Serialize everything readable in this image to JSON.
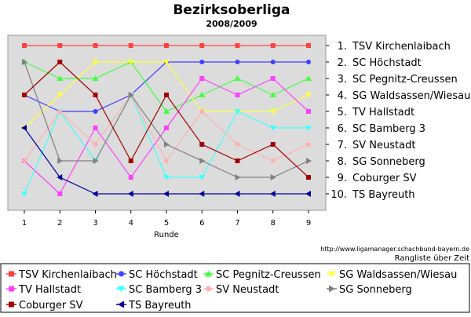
{
  "chart_data": {
    "type": "line",
    "title": "Bezirksoberliga",
    "subtitle": "2008/2009",
    "xlabel": "Runde",
    "x": [
      1,
      2,
      3,
      4,
      5,
      6,
      7,
      8,
      9
    ],
    "ylim": [
      1,
      10
    ],
    "y_inverted": true,
    "grid": false,
    "legend_position": "bottom",
    "rank_labels": [
      "1. TSV Kirchenlaibach",
      "2. SC Höchstadt",
      "3. SC Pegnitz-Creussen",
      "4. SG Waldsassen/Wiesau",
      "5. TV Hallstadt",
      "6. SC Bamberg 3",
      "7. SV Neustadt",
      "8. SG Sonneberg",
      "9. Coburger SV",
      "10. TS Bayreuth"
    ],
    "credit": "http://www.ligamanager.schachbund-bayern.de",
    "caption": "Rangliste über Zeit",
    "series": [
      {
        "name": "TSV Kirchenlaibach",
        "color": "#ff4040",
        "marker": "square",
        "values": [
          1,
          1,
          1,
          1,
          1,
          1,
          1,
          1,
          1
        ]
      },
      {
        "name": "SC Höchstadt",
        "color": "#4040ff",
        "marker": "circle",
        "values": [
          4,
          5,
          5,
          4,
          2,
          2,
          2,
          2,
          2
        ]
      },
      {
        "name": "SC Pegnitz-Creussen",
        "color": "#40ff40",
        "marker": "triangle-up",
        "values": [
          2,
          3,
          3,
          2,
          5,
          4,
          3,
          4,
          3
        ]
      },
      {
        "name": "SG Waldsassen/Wiesau",
        "color": "#ffff40",
        "marker": "triangle-down",
        "values": [
          6,
          4,
          2,
          2,
          2,
          5,
          5,
          5,
          4
        ]
      },
      {
        "name": "TV Hallstadt",
        "color": "#ff40ff",
        "marker": "square",
        "values": [
          8,
          10,
          6,
          9,
          6,
          3,
          4,
          3,
          5
        ]
      },
      {
        "name": "SC Bamberg 3",
        "color": "#40ffff",
        "marker": "triangle-down",
        "values": [
          10,
          5,
          8,
          4,
          9,
          9,
          5,
          6,
          6
        ]
      },
      {
        "name": "SV Neustadt",
        "color": "#ffb0b0",
        "marker": "circle",
        "values": [
          8,
          5,
          7,
          4,
          8,
          5,
          7,
          8,
          7
        ]
      },
      {
        "name": "SG Sonneberg",
        "color": "#808080",
        "marker": "triangle-right",
        "values": [
          2,
          8,
          8,
          4,
          7,
          8,
          9,
          9,
          8
        ]
      },
      {
        "name": "Coburger SV",
        "color": "#a00000",
        "marker": "square",
        "values": [
          4,
          2,
          4,
          8,
          4,
          7,
          8,
          7,
          9
        ]
      },
      {
        "name": "TS Bayreuth",
        "color": "#0000a0",
        "marker": "triangle-left",
        "values": [
          6,
          9,
          10,
          10,
          10,
          10,
          10,
          10,
          10
        ]
      }
    ]
  }
}
